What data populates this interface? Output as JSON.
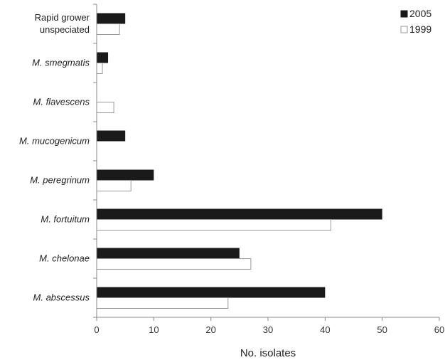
{
  "chart_data": {
    "type": "bar",
    "orientation": "horizontal",
    "categories": [
      [
        "Rapid grower",
        "unspeciated"
      ],
      [
        "M. smegmatis"
      ],
      [
        "M. flavescens"
      ],
      [
        "M. mucogenicum"
      ],
      [
        "M. peregrinum"
      ],
      [
        "M. fortuitum"
      ],
      [
        "M. chelonae"
      ],
      [
        "M. abscessus"
      ]
    ],
    "italic": [
      false,
      true,
      true,
      true,
      true,
      true,
      true,
      true
    ],
    "series": [
      {
        "name": "2005",
        "values": [
          5,
          2,
          0,
          5,
          10,
          50,
          25,
          40
        ],
        "color": "#1a1a1a"
      },
      {
        "name": "1999",
        "values": [
          4,
          1,
          3,
          0,
          6,
          41,
          27,
          23
        ],
        "color": "#ffffff",
        "stroke": "#999999"
      }
    ],
    "xlabel": "No. isolates",
    "xlim": [
      0,
      60
    ],
    "xticks": [
      0,
      10,
      20,
      30,
      40,
      50,
      60
    ],
    "legend": "top-right",
    "grid": false
  }
}
